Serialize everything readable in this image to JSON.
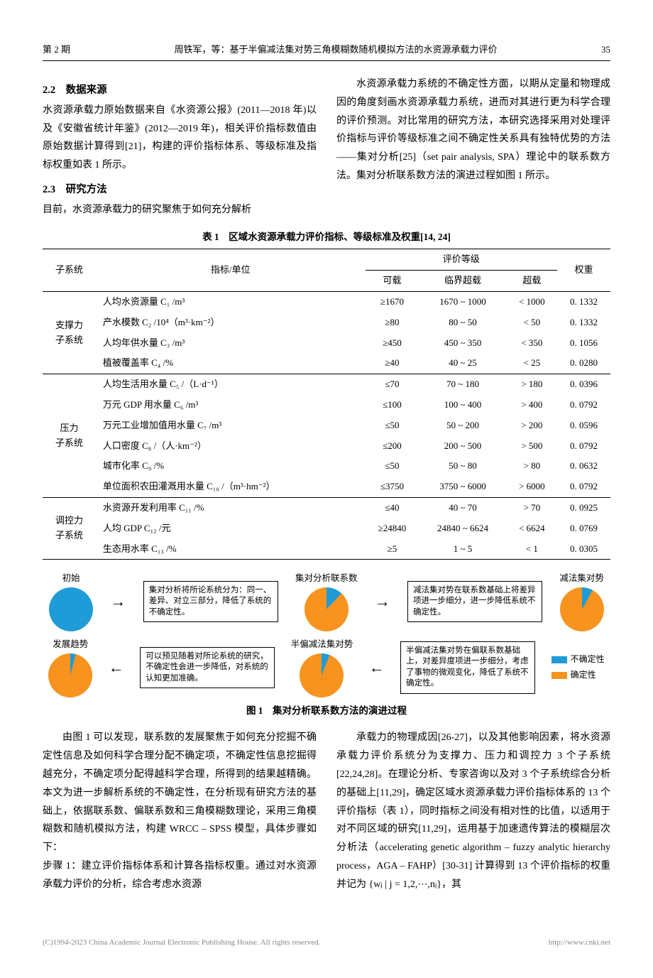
{
  "header": {
    "issue": "第 2 期",
    "title": "周铁军，等：基于半偏减法集对势三角模糊数随机模拟方法的水资源承载力评价",
    "page": "35"
  },
  "colors": {
    "blue": "#1f9cd8",
    "orange": "#f7931e",
    "text": "#000000",
    "footer": "#888888"
  },
  "sections": {
    "s22_head": "2.2　数据来源",
    "s22_body": "水资源承载力原始数据来自《水资源公报》(2011—2018 年)以及《安徽省统计年鉴》(2012—2019 年)，相关评价指标数值由原始数据计算得到[21]，构建的评价指标体系、等级标准及指标权重如表 1 所示。",
    "s23_head": "2.3　研究方法",
    "s23_body": "目前，水资源承载力的研究聚焦于如何充分解析",
    "right_top": "水资源承载力系统的不确定性方面，以期从定量和物理成因的角度刻画水资源承载力系统，进而对其进行更为科学合理的评价预测。对比常用的研究方法，本研究选择采用对处理评价指标与评价等级标准之间不确定性关系具有独特优势的方法——集对分析[25]（set pair analysis, SPA）理论中的联系数方法。集对分析联系数方法的演进过程如图 1 所示。"
  },
  "table": {
    "caption": "表 1　区域水资源承载力评价指标、等级标准及权重[14, 24]",
    "head": {
      "subsystem": "子系统",
      "indicator": "指标/单位",
      "grade": "评价等级",
      "weight": "权重",
      "g1": "可载",
      "g2": "临界超载",
      "g3": "超载"
    },
    "groups": [
      {
        "name": "支撑力\n子系统",
        "rows": [
          {
            "ind": "人均水资源量 C₁ /m³",
            "g1": "≥1670",
            "g2": "1670 ~ 1000",
            "g3": "< 1000",
            "w": "0. 1332"
          },
          {
            "ind": "产水模数 C₂ /10⁴（m³·km⁻²）",
            "g1": "≥80",
            "g2": "80 ~ 50",
            "g3": "< 50",
            "w": "0. 1332"
          },
          {
            "ind": "人均年供水量 C₃ /m³",
            "g1": "≥450",
            "g2": "450 ~ 350",
            "g3": "< 350",
            "w": "0. 1056"
          },
          {
            "ind": "植被覆盖率 C₄ /%",
            "g1": "≥40",
            "g2": "40 ~ 25",
            "g3": "< 25",
            "w": "0. 0280"
          }
        ]
      },
      {
        "name": "压力\n子系统",
        "rows": [
          {
            "ind": "人均生活用水量 C₅ /（L·d⁻¹）",
            "g1": "≤70",
            "g2": "70 ~ 180",
            "g3": "> 180",
            "w": "0. 0396"
          },
          {
            "ind": "万元 GDP 用水量 C₆ /m³",
            "g1": "≤100",
            "g2": "100 ~ 400",
            "g3": "> 400",
            "w": "0. 0792"
          },
          {
            "ind": "万元工业增加值用水量 C₇ /m³",
            "g1": "≤50",
            "g2": "50 ~ 200",
            "g3": "> 200",
            "w": "0. 0596"
          },
          {
            "ind": "人口密度 C₈ /（人·km⁻²）",
            "g1": "≤200",
            "g2": "200 ~ 500",
            "g3": "> 500",
            "w": "0. 0792"
          },
          {
            "ind": "城市化率 C₉ /%",
            "g1": "≤50",
            "g2": "50 ~ 80",
            "g3": "> 80",
            "w": "0. 0632"
          },
          {
            "ind": "单位面积农田灌溉用水量 C₁₀ /（m³·hm⁻²）",
            "g1": "≤3750",
            "g2": "3750 ~ 6000",
            "g3": "> 6000",
            "w": "0. 0792"
          }
        ]
      },
      {
        "name": "调控力\n子系统",
        "rows": [
          {
            "ind": "水资源开发利用率 C₁₁ /%",
            "g1": "≤40",
            "g2": "40 ~ 70",
            "g3": "> 70",
            "w": "0. 0925"
          },
          {
            "ind": "人均 GDP C₁₂ /元",
            "g1": "≥24840",
            "g2": "24840 ~ 6624",
            "g3": "< 6624",
            "w": "0. 0769"
          },
          {
            "ind": "生态用水率 C₁₃ /%",
            "g1": "≥5",
            "g2": "1 ~ 5",
            "g3": "< 1",
            "w": "0. 0305"
          }
        ]
      }
    ]
  },
  "figure": {
    "caption": "图 1　集对分析联系数方法的演进过程",
    "pies": [
      {
        "label": "初始",
        "blue_pct": 100
      },
      {
        "label": "集对分析联系数",
        "blue_pct": 12
      },
      {
        "label": "减法集对势",
        "blue_pct": 8
      },
      {
        "label": "发展趋势",
        "blue_pct": 4
      },
      {
        "label": "半偏减法集对势",
        "blue_pct": 6
      }
    ],
    "callouts": {
      "c1": "集对分析将所论系统分为：同一、差异、对立三部分，降低了系统的不确定性。",
      "c2": "减法集对势在联系数基础上将差异项进一步细分，进一步降低系统不确定性。",
      "c3": "可以预见随着对所论系统的研究，不确定性会进一步降低，对系统的认知更加准确。",
      "c4": "半偏减法集对势在偏联系数基础上，对差异度项进一步细分，考虑了事物的微观变化，降低了系统不确定性。"
    },
    "legend": {
      "a": "不确定性",
      "b": "确定性"
    }
  },
  "body_after": {
    "left": "由图 1 可以发现，联系数的发展聚焦于如何充分挖掘不确定性信息及如何科学合理分配不确定项，不确定性信息挖掘得越充分，不确定项分配得越科学合理，所得到的结果越精确。本文为进一步解析系统的不确定性，在分析现有研究方法的基础上，依据联系数、偏联系数和三角模糊数理论，采用三角模糊数和随机模拟方法，构建 WRCC – SPSS 模型，具体步骤如下：",
    "left2": "步骤 1：建立评价指标体系和计算各指标权重。通过对水资源承载力评价的分析，综合考虑水资源",
    "right": "承载力的物理成因[26-27]，以及其他影响因素，将水资源承载力评价系统分为支撑力、压力和调控力 3 个子系统[22,24,28]。在理论分析、专家咨询以及对 3 个子系统综合分析的基础上[11,29]，确定区域水资源承载力评价指标体系的 13 个评价指标（表 1），同时指标之间没有相对性的比值，以适用于对不同区域的研究[11,29]，运用基于加速遗传算法的模糊层次分析法（accelerating genetic algorithm – fuzzy analytic hierarchy process，AGA – FAHP）[30-31] 计算得到 13 个评价指标的权重并记为 {wⱼ | j = 1,2,⋯,nⱼ}，其"
  },
  "footer": {
    "left": "(C)1994-2023 China Academic Journal Electronic Publishing House. All rights reserved.",
    "right": "http://www.cnki.net"
  }
}
